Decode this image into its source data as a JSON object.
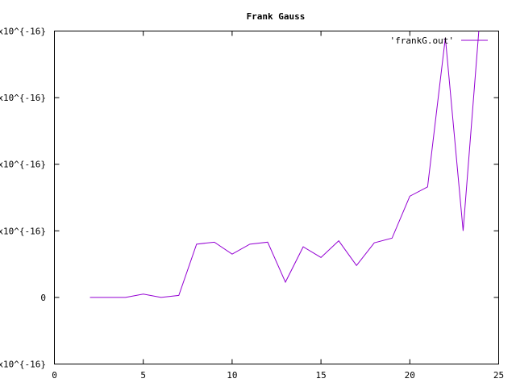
{
  "chart_data": {
    "type": "line",
    "title": "Frank Gauss",
    "xlabel": "",
    "ylabel": "",
    "xlim": [
      0,
      25
    ],
    "ylim": [
      -1,
      4
    ],
    "x_ticks": [
      "0",
      "5",
      "10",
      "15",
      "20",
      "25"
    ],
    "y_ticks": [
      "10^{-16}",
      "0",
      "10^{-16}",
      "10^{-16}",
      "10^{-16}",
      "10^{-16}"
    ],
    "y_tick_prefix": "x",
    "grid": false,
    "legend_position": "top-right",
    "series": [
      {
        "name": "'frankG.out'",
        "color": "#9400d3",
        "x": [
          2,
          3,
          4,
          5,
          6,
          7,
          8,
          9,
          10,
          11,
          12,
          13,
          14,
          15,
          16,
          17,
          18,
          19,
          20,
          21,
          22,
          23,
          24
        ],
        "y": [
          0,
          0,
          0,
          0.05,
          0,
          0.03,
          0.8,
          0.83,
          0.65,
          0.8,
          0.83,
          0.23,
          0.76,
          0.6,
          0.85,
          0.48,
          0.82,
          0.89,
          1.52,
          1.66,
          3.9,
          1.0,
          4.4
        ]
      }
    ]
  }
}
